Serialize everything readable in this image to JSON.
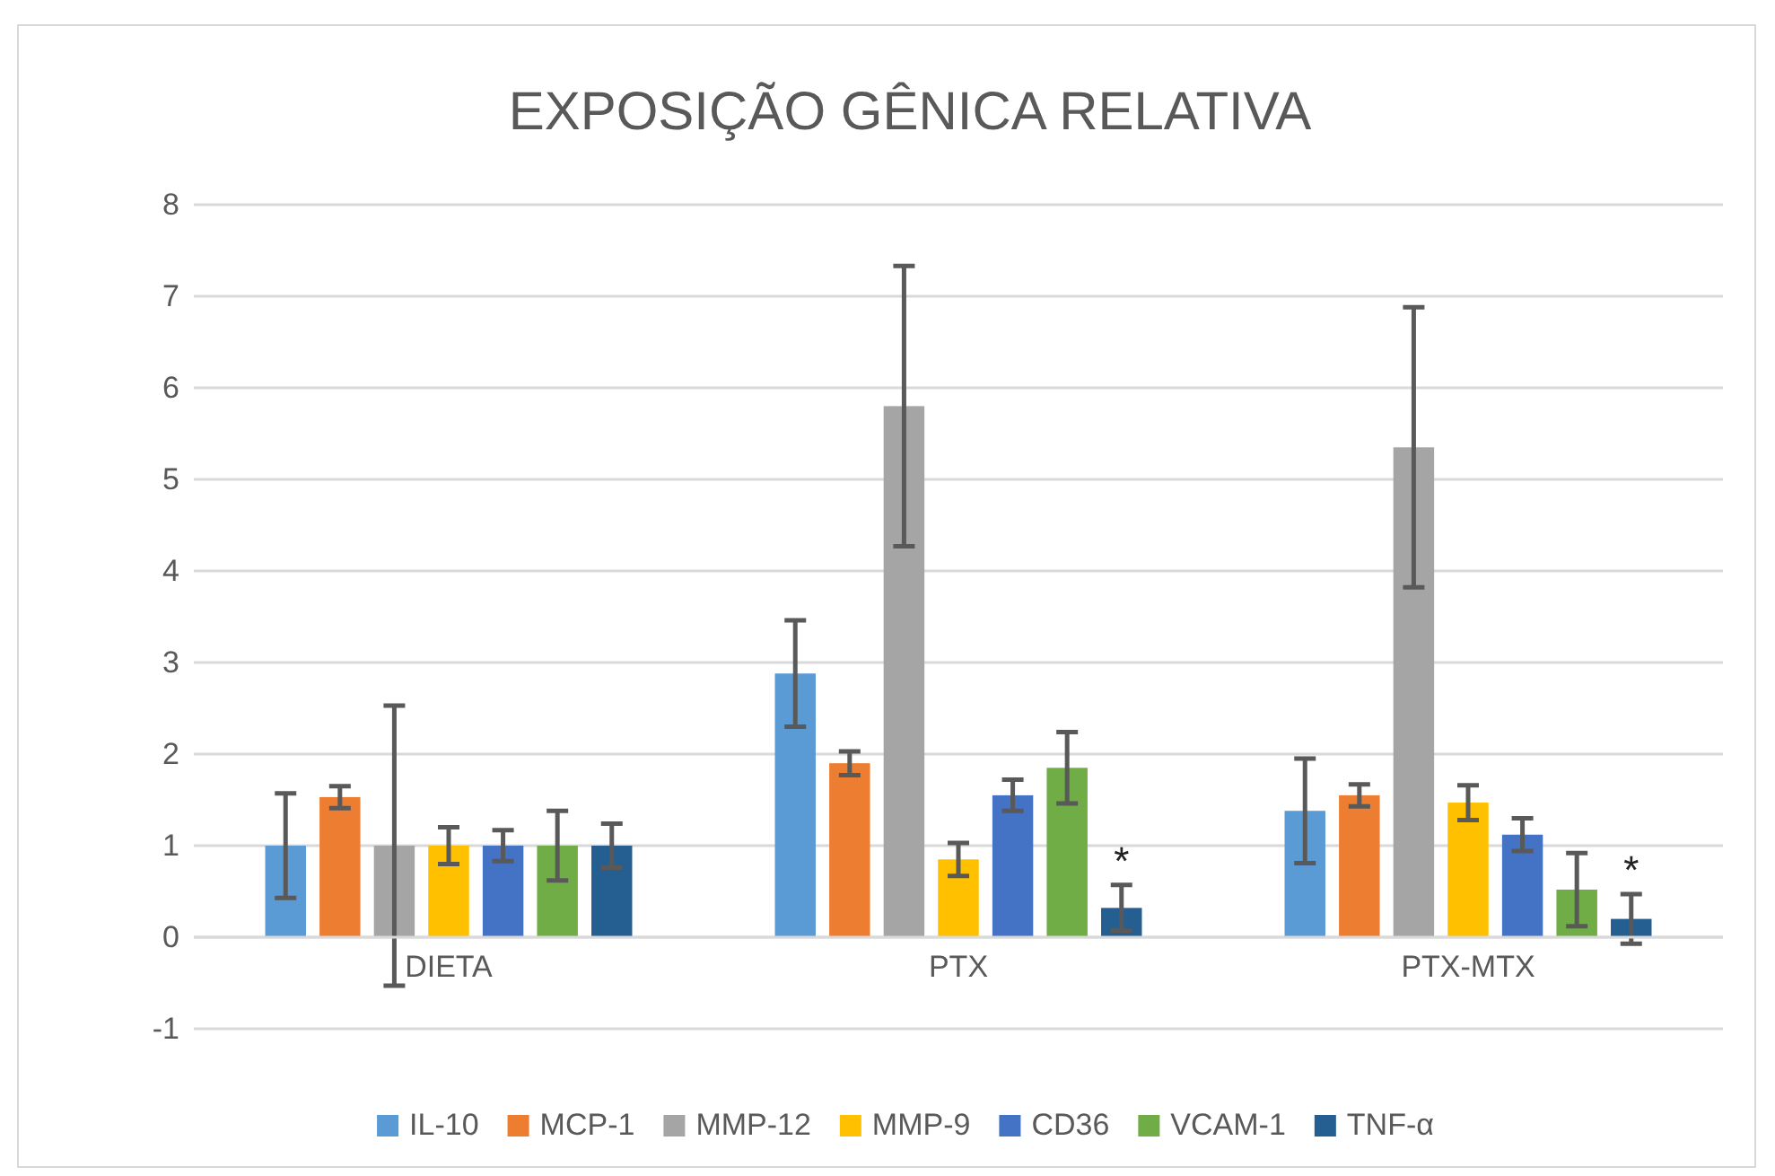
{
  "chart_data": {
    "type": "bar",
    "title": "EXPOSIÇÃO GÊNICA RELATIVA",
    "categories": [
      "DIETA",
      "PTX",
      "PTX-MTX"
    ],
    "series": [
      {
        "name": "IL-10",
        "color": "#5b9bd5",
        "values": [
          1,
          2.88,
          1.38
        ],
        "errors": [
          0.57,
          0.58,
          0.57
        ]
      },
      {
        "name": "MCP-1",
        "color": "#ed7d31",
        "values": [
          1.53,
          1.9,
          1.55
        ],
        "errors": [
          0.12,
          0.13,
          0.12
        ]
      },
      {
        "name": "MMP-12",
        "color": "#a5a5a5",
        "values": [
          1,
          5.8,
          5.35
        ],
        "errors": [
          1.53,
          1.53,
          1.53
        ]
      },
      {
        "name": "MMP-9",
        "color": "#ffc000",
        "values": [
          1,
          0.85,
          1.47
        ],
        "errors": [
          0.2,
          0.18,
          0.19
        ]
      },
      {
        "name": "CD36",
        "color": "#4472c4",
        "values": [
          1,
          1.55,
          1.12
        ],
        "errors": [
          0.17,
          0.17,
          0.18
        ]
      },
      {
        "name": "VCAM-1",
        "color": "#70ad47",
        "values": [
          1,
          1.85,
          0.52
        ],
        "errors": [
          0.38,
          0.39,
          0.4
        ]
      },
      {
        "name": "TNF-α",
        "color": "#255e91",
        "values": [
          1,
          0.32,
          0.2
        ],
        "errors": [
          0.24,
          0.25,
          0.27
        ]
      }
    ],
    "ylim": [
      -1,
      8
    ],
    "yticks": [
      -1,
      0,
      1,
      2,
      3,
      4,
      5,
      6,
      7,
      8
    ],
    "grid": "y",
    "legend": "bottom",
    "annotations": [
      "*",
      "*"
    ]
  }
}
